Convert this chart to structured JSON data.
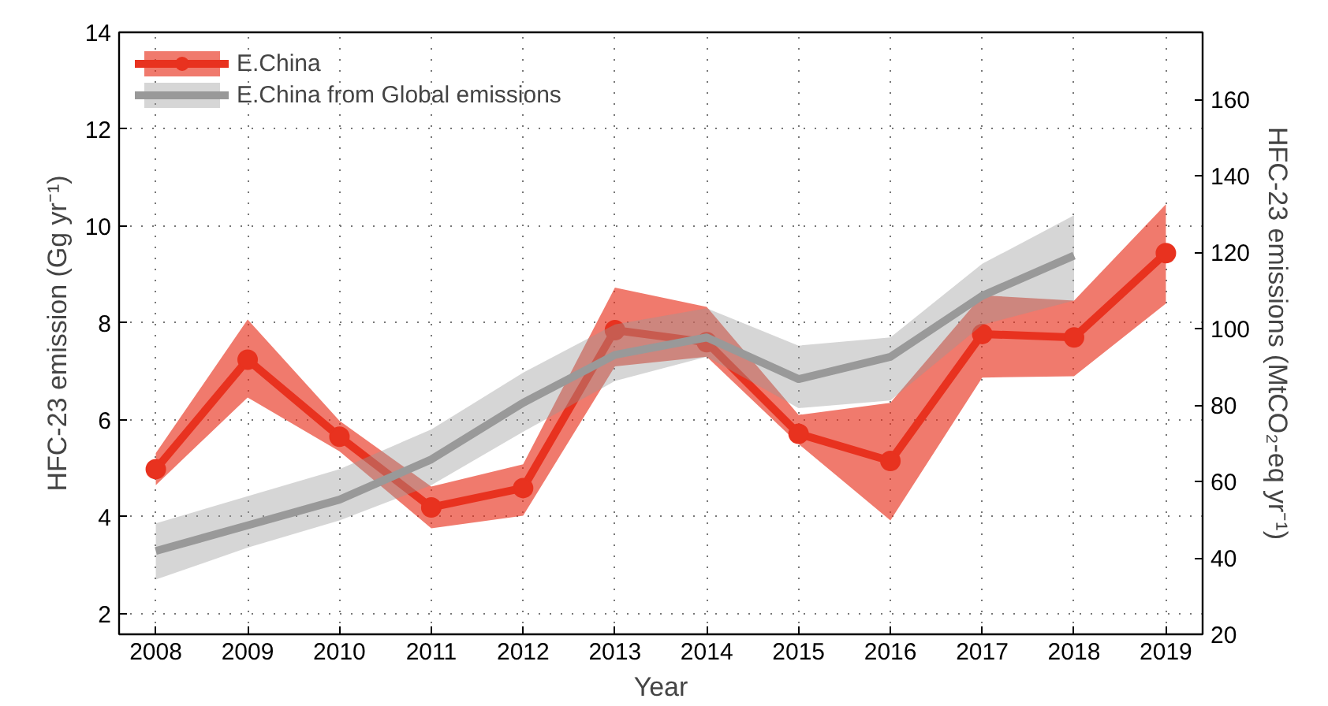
{
  "chart_data": {
    "type": "line",
    "xlabel": "Year",
    "ylabel": "HFC-23 emission (Gg yr⁻¹)",
    "y2label": "HFC-23 emissions (MtCO₂-eq yr⁻¹)",
    "x": [
      2008,
      2009,
      2010,
      2011,
      2012,
      2013,
      2014,
      2015,
      2016,
      2017,
      2018,
      2019
    ],
    "xlim": [
      2007.6,
      2019.4
    ],
    "xticks": [
      2008,
      2009,
      2010,
      2011,
      2012,
      2013,
      2014,
      2015,
      2016,
      2017,
      2018,
      2019
    ],
    "ylim": [
      1.57,
      14
    ],
    "yticks": [
      2,
      4,
      6,
      8,
      10,
      12,
      14
    ],
    "y2lim": [
      20,
      177.6
    ],
    "y2ticks": [
      20,
      40,
      60,
      80,
      100,
      120,
      140,
      160
    ],
    "grid": true,
    "legend": "top left",
    "line_style": "solid",
    "series": [
      {
        "name": "E.China",
        "color": "#e8321f",
        "marker": "circle",
        "values": [
          4.98,
          7.24,
          5.65,
          4.19,
          4.59,
          7.85,
          7.6,
          5.71,
          5.15,
          7.77,
          7.7,
          9.44
        ],
        "lower": [
          4.65,
          6.46,
          5.35,
          3.76,
          4.02,
          7.1,
          7.3,
          5.5,
          3.92,
          6.87,
          6.9,
          8.4
        ],
        "upper": [
          5.31,
          8.07,
          5.98,
          4.62,
          5.08,
          8.73,
          8.33,
          6.1,
          6.35,
          8.57,
          8.46,
          10.45
        ]
      },
      {
        "name": "E.China from Global emissions",
        "color": "#999999",
        "marker": "none",
        "x": [
          2008,
          2009,
          2010,
          2011,
          2012,
          2013,
          2014,
          2015,
          2016,
          2017,
          2018
        ],
        "values": [
          3.29,
          3.82,
          4.35,
          5.18,
          6.35,
          7.34,
          7.7,
          6.84,
          7.3,
          8.56,
          9.39
        ],
        "lower": [
          2.7,
          3.36,
          3.92,
          4.65,
          5.75,
          6.8,
          7.3,
          6.24,
          6.4,
          7.96,
          8.46
        ],
        "upper": [
          3.86,
          4.42,
          4.98,
          5.8,
          6.97,
          7.97,
          8.3,
          7.53,
          7.7,
          9.22,
          10.22
        ]
      }
    ]
  }
}
